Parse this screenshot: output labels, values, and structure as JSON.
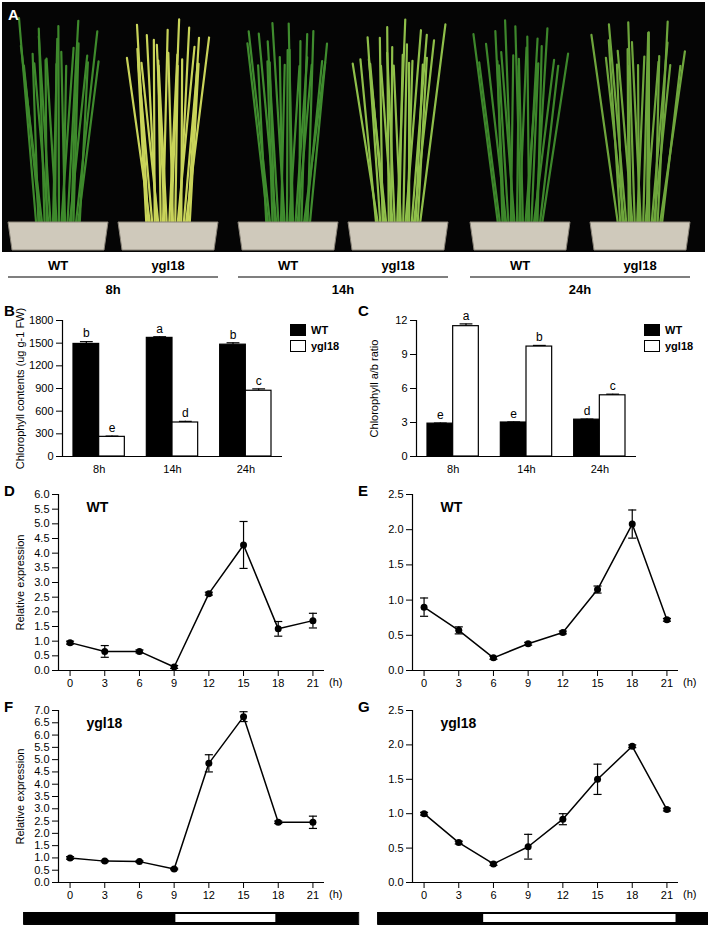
{
  "photo_panel": {
    "panel": "A",
    "groups": [
      {
        "label": "8h",
        "samples": [
          "WT",
          "ygl18"
        ]
      },
      {
        "label": "14h",
        "samples": [
          "WT",
          "ygl18"
        ]
      },
      {
        "label": "24h",
        "samples": [
          "WT",
          "ygl18"
        ]
      }
    ]
  },
  "chart_data": [
    {
      "panel": "B",
      "type": "bar",
      "categories": [
        "8h",
        "14h",
        "24h"
      ],
      "y_label": "Chlorophyll contents (ug g-1 FW)",
      "ylim": [
        0,
        1800
      ],
      "yticks": [
        0,
        300,
        600,
        900,
        1200,
        1500,
        1800
      ],
      "legend": "top-right",
      "series": [
        {
          "name": "WT",
          "color": "#000000",
          "values": [
            1490,
            1570,
            1480
          ],
          "errors": [
            30,
            15,
            25
          ],
          "letters": [
            "b",
            "a",
            "b"
          ]
        },
        {
          "name": "ygl18",
          "color": "#ffffff",
          "values": [
            260,
            450,
            870
          ],
          "errors": [
            10,
            15,
            25
          ],
          "letters": [
            "e",
            "d",
            "c"
          ]
        }
      ]
    },
    {
      "panel": "C",
      "type": "bar",
      "categories": [
        "8h",
        "14h",
        "24h"
      ],
      "y_label": "Chlorophyll a/b ratio",
      "ylim": [
        0,
        12
      ],
      "yticks": [
        0,
        3,
        6,
        9,
        12
      ],
      "legend": "top-right",
      "series": [
        {
          "name": "WT",
          "color": "#000000",
          "values": [
            2.9,
            3.0,
            3.25
          ],
          "errors": [
            0.05,
            0.05,
            0.05
          ],
          "letters": [
            "e",
            "e",
            "d"
          ]
        },
        {
          "name": "ygl18",
          "color": "#ffffff",
          "values": [
            11.5,
            9.7,
            5.4
          ],
          "errors": [
            0.2,
            0.1,
            0.1
          ],
          "letters": [
            "a",
            "b",
            "c"
          ]
        }
      ]
    },
    {
      "panel": "D",
      "type": "line",
      "title": "WT",
      "y_label": "Relative expression",
      "x_label": "(h)",
      "x": [
        0,
        3,
        6,
        9,
        12,
        15,
        18,
        21
      ],
      "xlim": [
        -1,
        22
      ],
      "xticks": [
        0,
        3,
        6,
        9,
        12,
        15,
        18,
        21
      ],
      "ylim": [
        0,
        6
      ],
      "yticks": [
        {
          "value": 0,
          "label": "0.0"
        },
        {
          "value": 0.5,
          "label": "0.5"
        },
        {
          "value": 1,
          "label": "1.0"
        },
        {
          "value": 1.5,
          "label": "1.5"
        },
        {
          "value": 2,
          "label": "2.0"
        },
        {
          "value": 2.5,
          "label": "2.5"
        },
        {
          "value": 3,
          "label": "3.0"
        },
        {
          "value": 3.5,
          "label": "3.5"
        },
        {
          "value": 4,
          "label": "4.0"
        },
        {
          "value": 4.5,
          "label": "4.5"
        },
        {
          "value": 5,
          "label": "5.0"
        },
        {
          "value": 5.5,
          "label": "5.5"
        },
        {
          "value": 6,
          "label": "6.0"
        }
      ],
      "color": "#000000",
      "marker": "circle",
      "values": [
        0.95,
        0.65,
        0.65,
        0.12,
        2.62,
        4.28,
        1.42,
        1.7
      ],
      "errors": [
        0.05,
        0.2,
        0.05,
        0.05,
        0.05,
        0.8,
        0.25,
        0.25
      ]
    },
    {
      "panel": "E",
      "type": "line",
      "title": "WT",
      "x_label": "(h)",
      "x": [
        0,
        3,
        6,
        9,
        12,
        15,
        18,
        21
      ],
      "xlim": [
        -1,
        22
      ],
      "xticks": [
        0,
        3,
        6,
        9,
        12,
        15,
        18,
        21
      ],
      "ylim": [
        0,
        2.5
      ],
      "yticks": [
        {
          "value": 0,
          "label": "0.0"
        },
        {
          "value": 0.5,
          "label": "0.5"
        },
        {
          "value": 1,
          "label": "1.0"
        },
        {
          "value": 1.5,
          "label": "1.5"
        },
        {
          "value": 2,
          "label": "2.0"
        },
        {
          "value": 2.5,
          "label": "2.5"
        }
      ],
      "color": "#000000",
      "marker": "circle",
      "values": [
        0.9,
        0.57,
        0.18,
        0.38,
        0.54,
        1.15,
        2.08,
        0.72
      ],
      "errors": [
        0.13,
        0.05,
        0.02,
        0.02,
        0.02,
        0.05,
        0.2,
        0.02
      ]
    },
    {
      "panel": "F",
      "type": "line",
      "title": "ygl18",
      "y_label": "Relative expression",
      "x_label": "(h)",
      "x": [
        0,
        3,
        6,
        9,
        12,
        15,
        18,
        21
      ],
      "xlim": [
        -1,
        22
      ],
      "xticks": [
        0,
        3,
        6,
        9,
        12,
        15,
        18,
        21
      ],
      "ylim": [
        0,
        7
      ],
      "yticks": [
        {
          "value": 0,
          "label": "0.0"
        },
        {
          "value": 0.5,
          "label": "0.5"
        },
        {
          "value": 1,
          "label": "1.0"
        },
        {
          "value": 1.5,
          "label": "1.5"
        },
        {
          "value": 2,
          "label": "2.0"
        },
        {
          "value": 2.5,
          "label": "2.5"
        },
        {
          "value": 3,
          "label": "3.0"
        },
        {
          "value": 3.5,
          "label": "3.5"
        },
        {
          "value": 4,
          "label": "4.0"
        },
        {
          "value": 4.5,
          "label": "4.5"
        },
        {
          "value": 5,
          "label": "5.0"
        },
        {
          "value": 5.5,
          "label": "5.5"
        },
        {
          "value": 6,
          "label": "6.0"
        },
        {
          "value": 6.5,
          "label": "6.5"
        },
        {
          "value": 7,
          "label": "7.0"
        }
      ],
      "color": "#000000",
      "marker": "circle",
      "values": [
        1.0,
        0.87,
        0.85,
        0.55,
        4.85,
        6.75,
        2.45,
        2.45
      ],
      "errors": [
        0.05,
        0.03,
        0.03,
        0.03,
        0.35,
        0.2,
        0.05,
        0.25
      ],
      "day_night": {
        "range": [
          -4,
          25
        ],
        "light": [
          9,
          18
        ]
      }
    },
    {
      "panel": "G",
      "type": "line",
      "title": "ygl18",
      "x_label": "(h)",
      "x": [
        0,
        3,
        6,
        9,
        12,
        15,
        18,
        21
      ],
      "xlim": [
        -1,
        22
      ],
      "xticks": [
        0,
        3,
        6,
        9,
        12,
        15,
        18,
        21
      ],
      "ylim": [
        0,
        2.5
      ],
      "yticks": [
        {
          "value": 0,
          "label": "0.0"
        },
        {
          "value": 0.5,
          "label": "0.5"
        },
        {
          "value": 1,
          "label": "1.0"
        },
        {
          "value": 1.5,
          "label": "1.5"
        },
        {
          "value": 2,
          "label": "2.0"
        },
        {
          "value": 2.5,
          "label": "2.5"
        }
      ],
      "color": "#000000",
      "marker": "circle",
      "values": [
        1.0,
        0.58,
        0.27,
        0.52,
        0.92,
        1.5,
        1.98,
        1.06
      ],
      "errors": [
        0.02,
        0.02,
        0.02,
        0.18,
        0.08,
        0.22,
        0.02,
        0.02
      ],
      "day_night": {
        "range": [
          -4,
          25
        ],
        "light": [
          5,
          22
        ]
      }
    }
  ]
}
